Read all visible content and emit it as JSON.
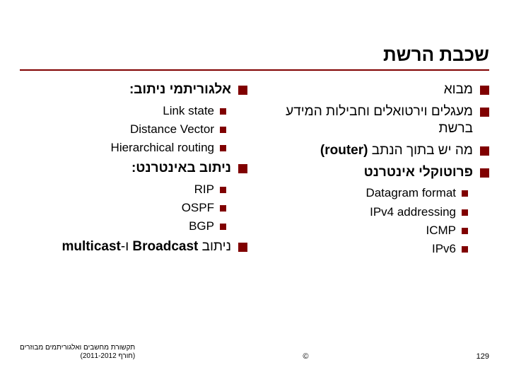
{
  "title": "שכבת הרשת",
  "right_col": {
    "items": [
      {
        "text": "מבוא"
      },
      {
        "text": "מעגלים וירטואלים וחבילות המידע ברשת"
      },
      {
        "text": "מה יש בתוך הנתב (router)",
        "bold_part": "(router)"
      },
      {
        "text": "פרוטוקלי אינטרנט",
        "bold": true
      }
    ],
    "subs": [
      "Datagram format",
      "IPv4 addressing",
      "ICMP",
      "IPv6"
    ]
  },
  "left_col": {
    "items1": [
      {
        "text": "אלגוריתמי ניתוב:",
        "bold": true
      }
    ],
    "subs1": [
      "Link state",
      "Distance Vector",
      "Hierarchical routing"
    ],
    "items2": [
      {
        "text": "ניתוב באינטרנט:",
        "bold": true
      }
    ],
    "subs2": [
      "RIP",
      "OSPF",
      "BGP"
    ],
    "items3": [
      {
        "html": "ניתוב <span class='ltr'><b>Broadcast</b></span> ו-<b>multicast</b>"
      }
    ]
  },
  "footer": {
    "page": "129",
    "center": "©",
    "left_line1": "תקשורת מחשבים ואלגוריתמים מבוזרים",
    "left_line2": "(חורף 2011-2012)"
  }
}
